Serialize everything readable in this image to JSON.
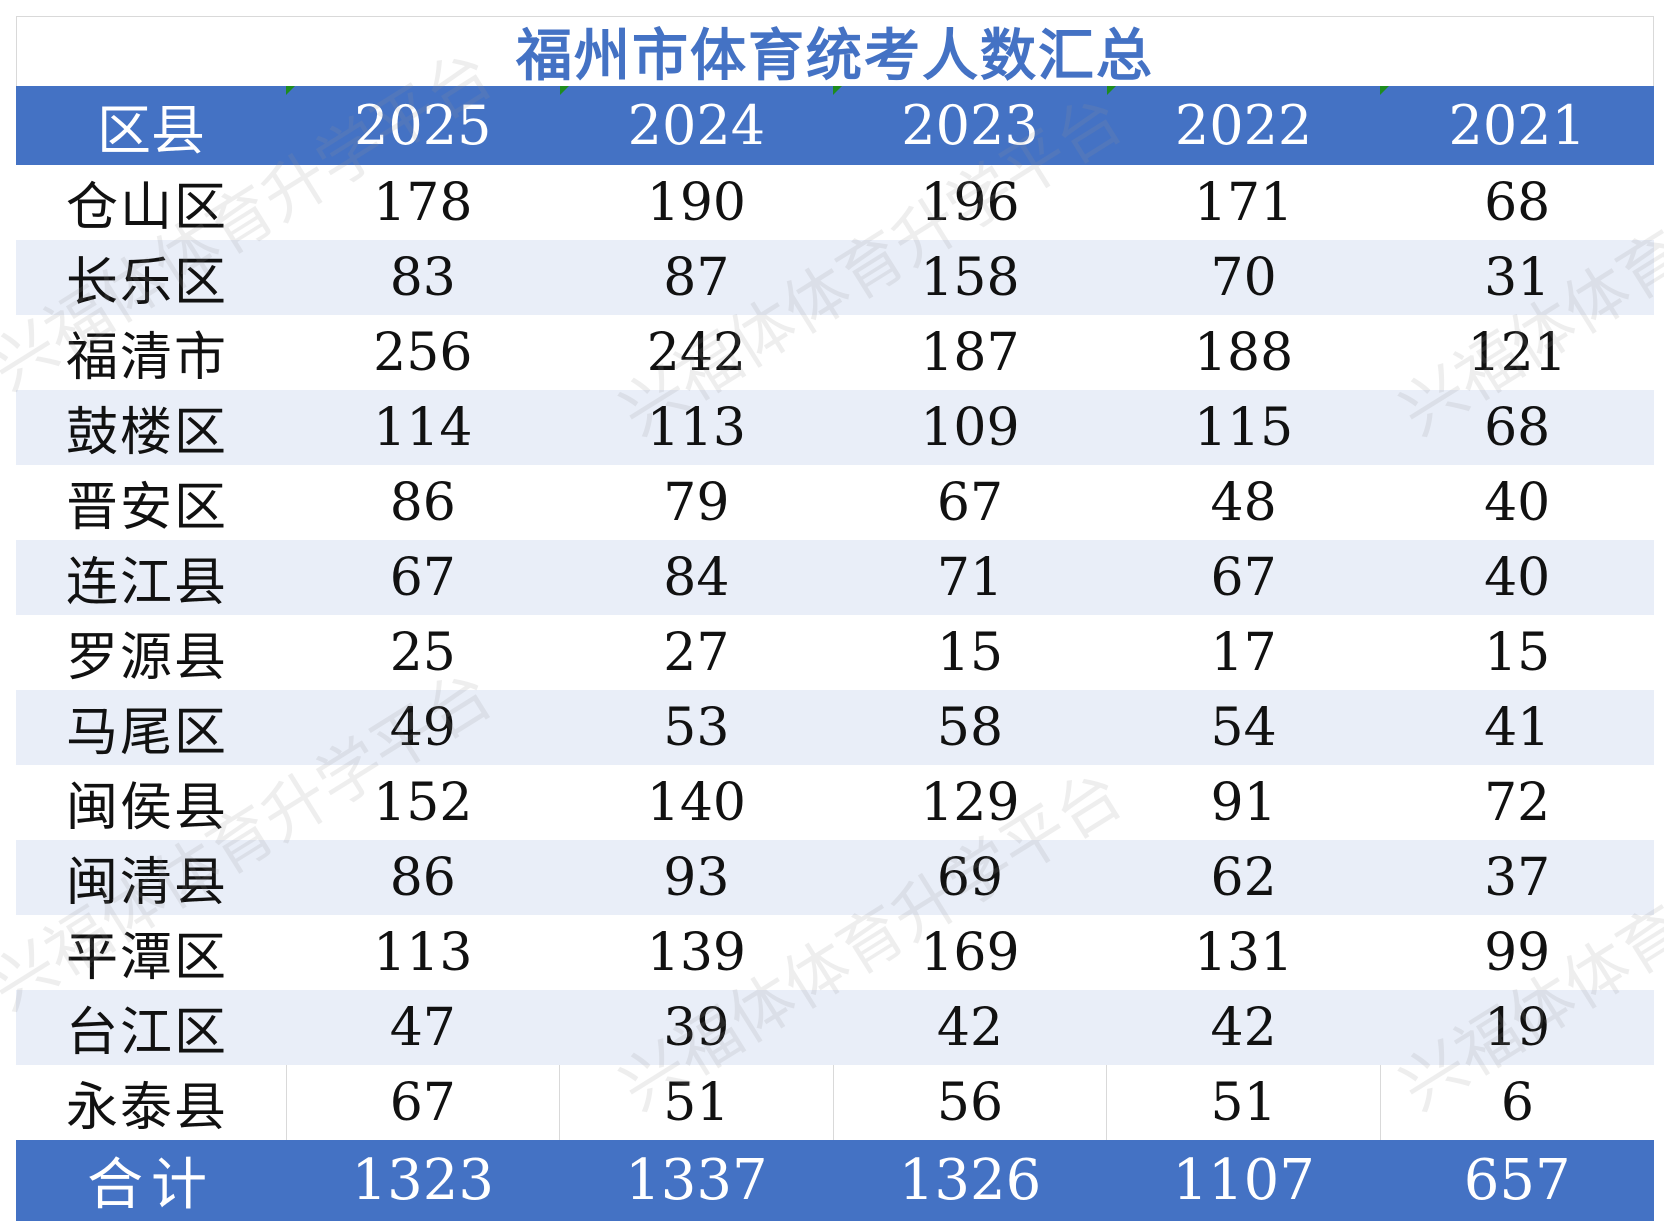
{
  "chart_data": {
    "type": "table",
    "title": "福州市体育统考人数汇总",
    "header": [
      "区县",
      "2025",
      "2024",
      "2023",
      "2022",
      "2021"
    ],
    "rows": [
      {
        "district": "仓山区",
        "values": [
          "178",
          "190",
          "196",
          "171",
          "68"
        ]
      },
      {
        "district": "长乐区",
        "values": [
          "83",
          "87",
          "158",
          "70",
          "31"
        ]
      },
      {
        "district": "福清市",
        "values": [
          "256",
          "242",
          "187",
          "188",
          "121"
        ]
      },
      {
        "district": "鼓楼区",
        "values": [
          "114",
          "113",
          "109",
          "115",
          "68"
        ]
      },
      {
        "district": "晋安区",
        "values": [
          "86",
          "79",
          "67",
          "48",
          "40"
        ]
      },
      {
        "district": "连江县",
        "values": [
          "67",
          "84",
          "71",
          "67",
          "40"
        ]
      },
      {
        "district": "罗源县",
        "values": [
          "25",
          "27",
          "15",
          "17",
          "15"
        ]
      },
      {
        "district": "马尾区",
        "values": [
          "49",
          "53",
          "58",
          "54",
          "41"
        ]
      },
      {
        "district": "闽侯县",
        "values": [
          "152",
          "140",
          "129",
          "91",
          "72"
        ]
      },
      {
        "district": "闽清县",
        "values": [
          "86",
          "93",
          "69",
          "62",
          "37"
        ]
      },
      {
        "district": "平潭区",
        "values": [
          "113",
          "139",
          "169",
          "131",
          "99"
        ]
      },
      {
        "district": "台江区",
        "values": [
          "47",
          "39",
          "42",
          "42",
          "19"
        ]
      },
      {
        "district": "永泰县",
        "values": [
          "67",
          "51",
          "56",
          "51",
          "6"
        ]
      }
    ],
    "total": {
      "label": "合计",
      "values": [
        "1323",
        "1337",
        "1326",
        "1107",
        "657"
      ]
    }
  },
  "watermark": "兴福体体育升学平台",
  "colors": {
    "header_bg": "#4472c4",
    "title_text": "#4472c4",
    "alt_row_bg": "#e9eef8",
    "header_text": "#ffffff"
  }
}
